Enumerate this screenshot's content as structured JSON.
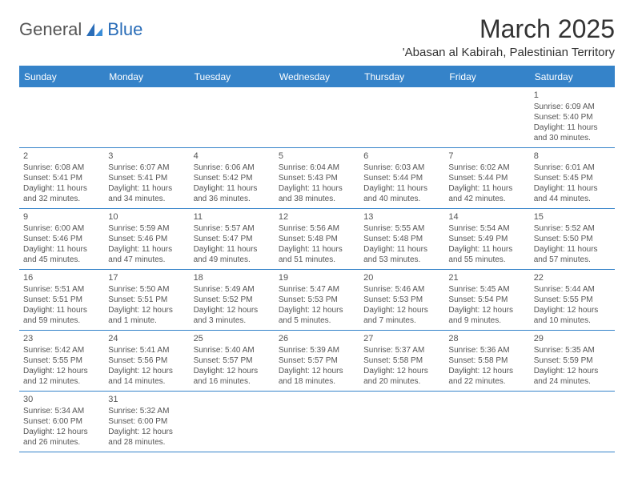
{
  "logo": {
    "part1": "General",
    "part2": "Blue"
  },
  "title": "March 2025",
  "location": "'Abasan al Kabirah, Palestinian Territory",
  "colors": {
    "header_bg": "#3583c9",
    "header_text": "#ffffff",
    "border": "#3583c9",
    "text": "#555555",
    "title": "#333333",
    "logo_blue": "#2a6db8"
  },
  "typography": {
    "title_fontsize": 32,
    "location_fontsize": 15,
    "th_fontsize": 12,
    "cell_fontsize": 10,
    "logo_fontsize": 22
  },
  "weekdays": [
    "Sunday",
    "Monday",
    "Tuesday",
    "Wednesday",
    "Thursday",
    "Friday",
    "Saturday"
  ],
  "weeks": [
    [
      null,
      null,
      null,
      null,
      null,
      null,
      {
        "n": "1",
        "sr": "Sunrise: 6:09 AM",
        "ss": "Sunset: 5:40 PM",
        "d1": "Daylight: 11 hours",
        "d2": "and 30 minutes."
      }
    ],
    [
      {
        "n": "2",
        "sr": "Sunrise: 6:08 AM",
        "ss": "Sunset: 5:41 PM",
        "d1": "Daylight: 11 hours",
        "d2": "and 32 minutes."
      },
      {
        "n": "3",
        "sr": "Sunrise: 6:07 AM",
        "ss": "Sunset: 5:41 PM",
        "d1": "Daylight: 11 hours",
        "d2": "and 34 minutes."
      },
      {
        "n": "4",
        "sr": "Sunrise: 6:06 AM",
        "ss": "Sunset: 5:42 PM",
        "d1": "Daylight: 11 hours",
        "d2": "and 36 minutes."
      },
      {
        "n": "5",
        "sr": "Sunrise: 6:04 AM",
        "ss": "Sunset: 5:43 PM",
        "d1": "Daylight: 11 hours",
        "d2": "and 38 minutes."
      },
      {
        "n": "6",
        "sr": "Sunrise: 6:03 AM",
        "ss": "Sunset: 5:44 PM",
        "d1": "Daylight: 11 hours",
        "d2": "and 40 minutes."
      },
      {
        "n": "7",
        "sr": "Sunrise: 6:02 AM",
        "ss": "Sunset: 5:44 PM",
        "d1": "Daylight: 11 hours",
        "d2": "and 42 minutes."
      },
      {
        "n": "8",
        "sr": "Sunrise: 6:01 AM",
        "ss": "Sunset: 5:45 PM",
        "d1": "Daylight: 11 hours",
        "d2": "and 44 minutes."
      }
    ],
    [
      {
        "n": "9",
        "sr": "Sunrise: 6:00 AM",
        "ss": "Sunset: 5:46 PM",
        "d1": "Daylight: 11 hours",
        "d2": "and 45 minutes."
      },
      {
        "n": "10",
        "sr": "Sunrise: 5:59 AM",
        "ss": "Sunset: 5:46 PM",
        "d1": "Daylight: 11 hours",
        "d2": "and 47 minutes."
      },
      {
        "n": "11",
        "sr": "Sunrise: 5:57 AM",
        "ss": "Sunset: 5:47 PM",
        "d1": "Daylight: 11 hours",
        "d2": "and 49 minutes."
      },
      {
        "n": "12",
        "sr": "Sunrise: 5:56 AM",
        "ss": "Sunset: 5:48 PM",
        "d1": "Daylight: 11 hours",
        "d2": "and 51 minutes."
      },
      {
        "n": "13",
        "sr": "Sunrise: 5:55 AM",
        "ss": "Sunset: 5:48 PM",
        "d1": "Daylight: 11 hours",
        "d2": "and 53 minutes."
      },
      {
        "n": "14",
        "sr": "Sunrise: 5:54 AM",
        "ss": "Sunset: 5:49 PM",
        "d1": "Daylight: 11 hours",
        "d2": "and 55 minutes."
      },
      {
        "n": "15",
        "sr": "Sunrise: 5:52 AM",
        "ss": "Sunset: 5:50 PM",
        "d1": "Daylight: 11 hours",
        "d2": "and 57 minutes."
      }
    ],
    [
      {
        "n": "16",
        "sr": "Sunrise: 5:51 AM",
        "ss": "Sunset: 5:51 PM",
        "d1": "Daylight: 11 hours",
        "d2": "and 59 minutes."
      },
      {
        "n": "17",
        "sr": "Sunrise: 5:50 AM",
        "ss": "Sunset: 5:51 PM",
        "d1": "Daylight: 12 hours",
        "d2": "and 1 minute."
      },
      {
        "n": "18",
        "sr": "Sunrise: 5:49 AM",
        "ss": "Sunset: 5:52 PM",
        "d1": "Daylight: 12 hours",
        "d2": "and 3 minutes."
      },
      {
        "n": "19",
        "sr": "Sunrise: 5:47 AM",
        "ss": "Sunset: 5:53 PM",
        "d1": "Daylight: 12 hours",
        "d2": "and 5 minutes."
      },
      {
        "n": "20",
        "sr": "Sunrise: 5:46 AM",
        "ss": "Sunset: 5:53 PM",
        "d1": "Daylight: 12 hours",
        "d2": "and 7 minutes."
      },
      {
        "n": "21",
        "sr": "Sunrise: 5:45 AM",
        "ss": "Sunset: 5:54 PM",
        "d1": "Daylight: 12 hours",
        "d2": "and 9 minutes."
      },
      {
        "n": "22",
        "sr": "Sunrise: 5:44 AM",
        "ss": "Sunset: 5:55 PM",
        "d1": "Daylight: 12 hours",
        "d2": "and 10 minutes."
      }
    ],
    [
      {
        "n": "23",
        "sr": "Sunrise: 5:42 AM",
        "ss": "Sunset: 5:55 PM",
        "d1": "Daylight: 12 hours",
        "d2": "and 12 minutes."
      },
      {
        "n": "24",
        "sr": "Sunrise: 5:41 AM",
        "ss": "Sunset: 5:56 PM",
        "d1": "Daylight: 12 hours",
        "d2": "and 14 minutes."
      },
      {
        "n": "25",
        "sr": "Sunrise: 5:40 AM",
        "ss": "Sunset: 5:57 PM",
        "d1": "Daylight: 12 hours",
        "d2": "and 16 minutes."
      },
      {
        "n": "26",
        "sr": "Sunrise: 5:39 AM",
        "ss": "Sunset: 5:57 PM",
        "d1": "Daylight: 12 hours",
        "d2": "and 18 minutes."
      },
      {
        "n": "27",
        "sr": "Sunrise: 5:37 AM",
        "ss": "Sunset: 5:58 PM",
        "d1": "Daylight: 12 hours",
        "d2": "and 20 minutes."
      },
      {
        "n": "28",
        "sr": "Sunrise: 5:36 AM",
        "ss": "Sunset: 5:58 PM",
        "d1": "Daylight: 12 hours",
        "d2": "and 22 minutes."
      },
      {
        "n": "29",
        "sr": "Sunrise: 5:35 AM",
        "ss": "Sunset: 5:59 PM",
        "d1": "Daylight: 12 hours",
        "d2": "and 24 minutes."
      }
    ],
    [
      {
        "n": "30",
        "sr": "Sunrise: 5:34 AM",
        "ss": "Sunset: 6:00 PM",
        "d1": "Daylight: 12 hours",
        "d2": "and 26 minutes."
      },
      {
        "n": "31",
        "sr": "Sunrise: 5:32 AM",
        "ss": "Sunset: 6:00 PM",
        "d1": "Daylight: 12 hours",
        "d2": "and 28 minutes."
      },
      null,
      null,
      null,
      null,
      null
    ]
  ]
}
